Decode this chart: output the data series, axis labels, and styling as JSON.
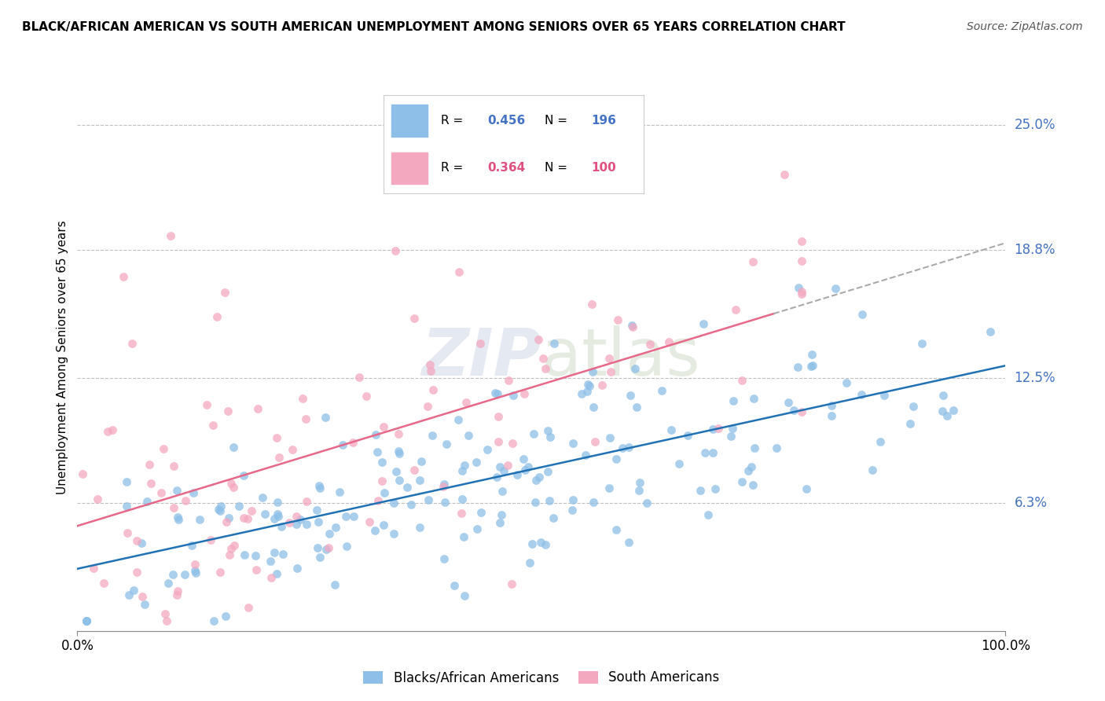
{
  "title": "BLACK/AFRICAN AMERICAN VS SOUTH AMERICAN UNEMPLOYMENT AMONG SENIORS OVER 65 YEARS CORRELATION CHART",
  "source": "Source: ZipAtlas.com",
  "blue_R": 0.456,
  "blue_N": 196,
  "pink_R": 0.364,
  "pink_N": 100,
  "blue_color": "#8dbfe8",
  "pink_color": "#f4a8c0",
  "blue_line_color": "#2171b5",
  "pink_line_color": "#e8688a",
  "ylabel": "Unemployment Among Seniors over 65 years",
  "ytick_labels": [
    "6.3%",
    "12.5%",
    "18.8%",
    "25.0%"
  ],
  "ytick_values": [
    0.063,
    0.125,
    0.188,
    0.25
  ],
  "xlim": [
    0.0,
    1.0
  ],
  "ylim": [
    0.0,
    0.27
  ],
  "legend_labels": [
    "Blacks/African Americans",
    "South Americans"
  ],
  "watermark_zip": "ZIP",
  "watermark_atlas": "atlas",
  "legend_R_color": "#4472c4",
  "legend_N_color": "#4472c4",
  "pink_legend_color": "#e05080"
}
